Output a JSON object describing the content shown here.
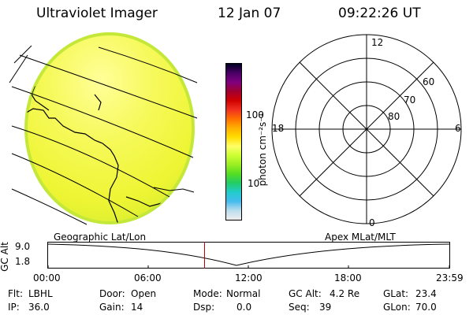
{
  "header": {
    "instrument": "Ultraviolet Imager",
    "date": "12 Jan 07",
    "time": "09:22:26 UT"
  },
  "colorbar": {
    "unit_label": "photon cm⁻²s⁻¹",
    "tick_labels": [
      "100",
      "10"
    ],
    "scale": "log",
    "colors_top_to_bottom": [
      "#000022",
      "#4a0066",
      "#800080",
      "#a00030",
      "#d00000",
      "#f03020",
      "#ff7000",
      "#ffb000",
      "#ffdd00",
      "#ffff66",
      "#ccff33",
      "#99ee22",
      "#55dd22",
      "#22cc66",
      "#22cccc",
      "#44bbee",
      "#bbddee",
      "#eeeeee"
    ]
  },
  "polar_plot": {
    "mlt_labels": [
      "12",
      "18",
      "6",
      "0"
    ],
    "lat_labels": [
      "60",
      "70",
      "80"
    ]
  },
  "timeline": {
    "y_label": "GC Alt",
    "y_ticks": [
      "9.0",
      "1.8"
    ],
    "left_title": "Geographic Lat/Lon",
    "right_title": "Apex MLat/MLT",
    "x_ticks": [
      "00:00",
      "06:00",
      "12:00",
      "18:00",
      "23:59"
    ]
  },
  "status": {
    "filter_label": "Flt:",
    "filter_value": "LBHL",
    "door_label": "Door:",
    "door_value": "Open",
    "mode_label": "Mode:",
    "mode_value": "Normal",
    "gcalt_label": "GC Alt:",
    "gcalt_value": "4.2 Re",
    "glat_label": "GLat:",
    "glat_value": "23.4",
    "ip_label": "IP:",
    "ip_value": "36.0",
    "gain_label": "Gain:",
    "gain_value": "14",
    "dsp_label": "Dsp:",
    "dsp_value": "0.0",
    "seq_label": "Seq:",
    "seq_value": "39",
    "glon_label": "GLon:",
    "glon_value": "70.0"
  }
}
